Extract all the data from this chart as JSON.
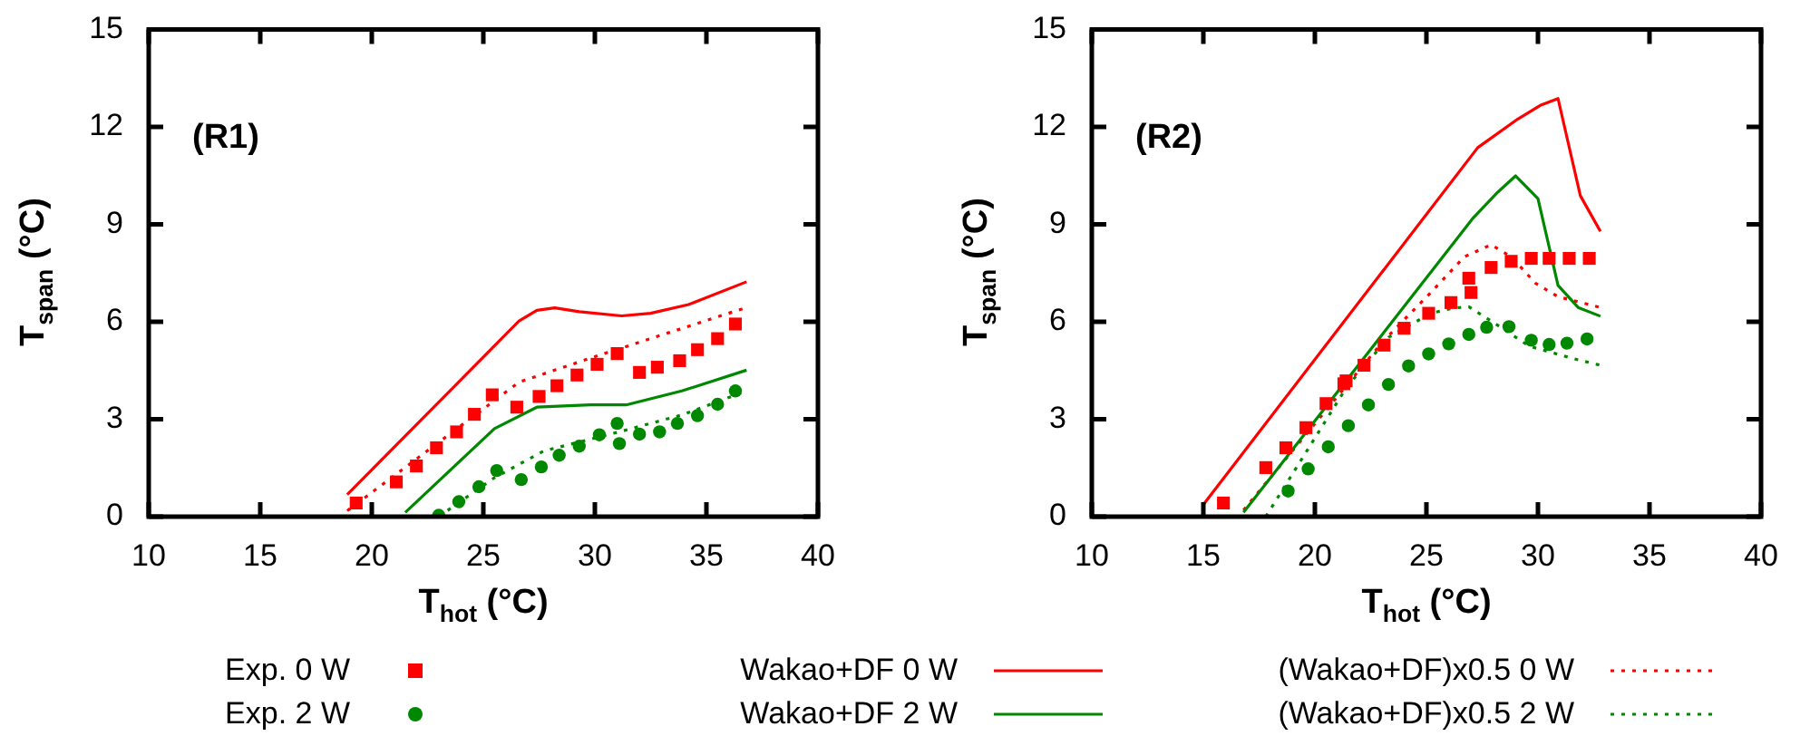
{
  "chart_data": [
    {
      "type": "scatter",
      "xlabel": "T$_{hot}$ (°C)",
      "ylabel": "T$_{span}$ (°C)",
      "annotations": [
        "(R1)"
      ],
      "xlim": [
        10,
        40
      ],
      "xticks": [
        10,
        15,
        20,
        25,
        30,
        35,
        40
      ],
      "ylim": [
        0,
        15
      ],
      "yticks": [
        0,
        3,
        6,
        9,
        12,
        15
      ],
      "grid": false,
      "legend": "bottom",
      "series": [
        {
          "name": "Exp. 0 W",
          "type": "scatter",
          "marker": "square",
          "color": "#ff0000",
          "x": [
            19.3,
            21.1,
            22.0,
            22.9,
            23.8,
            24.6,
            25.4,
            26.5,
            27.5,
            28.3,
            29.2,
            30.1,
            31.0,
            32.0,
            32.8,
            33.8,
            34.6,
            35.5,
            36.3
          ],
          "values": [
            0.42,
            1.07,
            1.56,
            2.12,
            2.61,
            3.15,
            3.75,
            3.37,
            3.7,
            4.03,
            4.36,
            4.69,
            5.02,
            4.44,
            4.6,
            4.8,
            5.14,
            5.48,
            5.93
          ]
        },
        {
          "name": "Exp. 2 W",
          "type": "scatter",
          "marker": "circle",
          "color": "#008800",
          "x": [
            23.0,
            23.9,
            24.8,
            25.6,
            26.7,
            27.6,
            28.4,
            29.3,
            30.2,
            31.0,
            31.1,
            32.0,
            32.9,
            33.7,
            34.6,
            35.5,
            36.3
          ],
          "values": [
            0.04,
            0.46,
            0.92,
            1.42,
            1.14,
            1.53,
            1.89,
            2.17,
            2.52,
            2.87,
            2.25,
            2.54,
            2.61,
            2.87,
            3.11,
            3.46,
            3.87
          ]
        },
        {
          "name": "Wakao+DF 0 W",
          "type": "line",
          "marker": "none",
          "line_style": "solid",
          "color": "#ff0000",
          "x": [
            18.9,
            26.6,
            27.4,
            28.2,
            29.3,
            31.2,
            32.5,
            34.2,
            36.8
          ],
          "values": [
            0.68,
            6.02,
            6.35,
            6.43,
            6.31,
            6.18,
            6.26,
            6.53,
            7.23
          ]
        },
        {
          "name": "Wakao+DF 2 W",
          "type": "line",
          "marker": "none",
          "line_style": "solid",
          "color": "#008800",
          "x": [
            21.5,
            25.5,
            27.4,
            29.8,
            31.4,
            33.9,
            36.8
          ],
          "values": [
            0.13,
            2.71,
            3.37,
            3.44,
            3.44,
            3.87,
            4.51
          ]
        },
        {
          "name": "(Wakao+DF)x0.5 0 W",
          "type": "line",
          "marker": "none",
          "line_style": "dotted",
          "color": "#ff0000",
          "x": [
            18.9,
            26.6,
            29.8,
            36.8
          ],
          "values": [
            0.18,
            4.14,
            4.88,
            6.44
          ]
        },
        {
          "name": "(Wakao+DF)x0.5 2 W",
          "type": "line",
          "marker": "none",
          "line_style": "dotted",
          "color": "#008800",
          "x": [
            23.0,
            25.5,
            27.7,
            31.2,
            33.9,
            36.8
          ],
          "values": [
            0.0,
            1.2,
            2.02,
            2.63,
            3.13,
            3.87
          ]
        }
      ]
    },
    {
      "type": "scatter",
      "xlabel": "T$_{hot}$ (°C)",
      "ylabel": "T$_{span}$ (°C)",
      "annotations": [
        "(R2)"
      ],
      "xlim": [
        10,
        40
      ],
      "xticks": [
        10,
        15,
        20,
        25,
        30,
        35,
        40
      ],
      "ylim": [
        0,
        15
      ],
      "yticks": [
        0,
        3,
        6,
        9,
        12,
        15
      ],
      "grid": false,
      "series": [
        {
          "type": "scatter",
          "marker": "square",
          "color": "#ff0000",
          "x": [
            15.9,
            17.8,
            18.7,
            19.6,
            20.5,
            21.3,
            21.4,
            22.2,
            23.1,
            24.0,
            25.1,
            26.1,
            26.9,
            27.0,
            27.9,
            28.8,
            29.7,
            30.5,
            31.4,
            32.3
          ],
          "values": [
            0.42,
            1.51,
            2.12,
            2.74,
            3.48,
            4.09,
            4.18,
            4.66,
            5.28,
            5.8,
            6.26,
            6.59,
            7.34,
            6.9,
            7.67,
            7.86,
            7.95,
            7.95,
            7.95,
            7.95
          ]
        },
        {
          "type": "scatter",
          "marker": "circle",
          "color": "#008800",
          "x": [
            18.8,
            19.7,
            20.6,
            21.5,
            22.4,
            23.3,
            24.2,
            25.1,
            26.0,
            26.9,
            27.7,
            28.7,
            29.7,
            30.5,
            31.3,
            32.2
          ],
          "values": [
            0.79,
            1.47,
            2.15,
            2.8,
            3.44,
            4.07,
            4.64,
            5.01,
            5.32,
            5.61,
            5.83,
            5.85,
            5.43,
            5.3,
            5.34,
            5.47
          ]
        },
        {
          "type": "line",
          "marker": "none",
          "line_style": "solid",
          "color": "#ff0000",
          "x": [
            15.0,
            27.3,
            29.1,
            30.1,
            30.9,
            31.9,
            32.8
          ],
          "values": [
            0.37,
            11.36,
            12.24,
            12.66,
            12.87,
            9.88,
            8.78
          ]
        },
        {
          "type": "line",
          "marker": "none",
          "line_style": "solid",
          "color": "#008800",
          "x": [
            16.8,
            27.1,
            28.2,
            29.0,
            30.0,
            30.9,
            31.8,
            32.8
          ],
          "values": [
            0.13,
            9.2,
            9.99,
            10.49,
            9.79,
            7.12,
            6.44,
            6.17
          ]
        },
        {
          "type": "line",
          "marker": "none",
          "line_style": "dotted",
          "color": "#ff0000",
          "x": [
            16.8,
            22.2,
            23.1,
            25.2,
            26.7,
            27.9,
            28.8,
            29.9,
            30.9,
            32.8
          ],
          "values": [
            0.2,
            4.69,
            5.43,
            6.9,
            8.0,
            8.37,
            8.0,
            7.18,
            6.77,
            6.44
          ]
        },
        {
          "type": "line",
          "marker": "none",
          "line_style": "dotted",
          "color": "#008800",
          "x": [
            17.8,
            21.4,
            23.3,
            25.2,
            26.2,
            26.9,
            28.0,
            29.6,
            31.5,
            32.8
          ],
          "values": [
            0.0,
            3.96,
            5.52,
            6.26,
            6.42,
            6.46,
            5.98,
            5.25,
            4.88,
            4.66
          ]
        }
      ]
    }
  ]
}
